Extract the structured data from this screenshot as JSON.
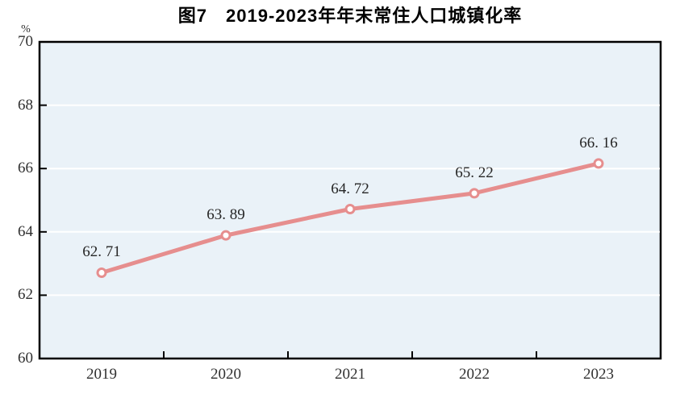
{
  "page": {
    "background_color": "#ffffff"
  },
  "chart_data": {
    "type": "line",
    "title": "图7　2019-2023年年末常住人口城镇化率",
    "ylabel": "%",
    "xlabel": "",
    "categories": [
      "2019",
      "2020",
      "2021",
      "2022",
      "2023"
    ],
    "series": [
      {
        "values": [
          62.71,
          63.89,
          64.72,
          65.22,
          66.16
        ],
        "point_labels": [
          "62. 71",
          "63. 89",
          "64. 72",
          "65. 22",
          "66. 16"
        ]
      }
    ],
    "ylim": [
      60,
      70
    ],
    "ytick_step": 2,
    "ytick_labels": [
      "70",
      "68",
      "66",
      "64",
      "62",
      "60"
    ],
    "grid": "horizontal white gridlines at interior y ticks",
    "legend": "none",
    "colors": {
      "line": "#e68e8e",
      "marker_fill": "#ffffff",
      "plot_background": "#eaf2f8",
      "gridline": "#ffffff",
      "axis_border": "#000000",
      "tick": "#000000",
      "label_text": "#303030",
      "title_text": "#000000"
    }
  }
}
